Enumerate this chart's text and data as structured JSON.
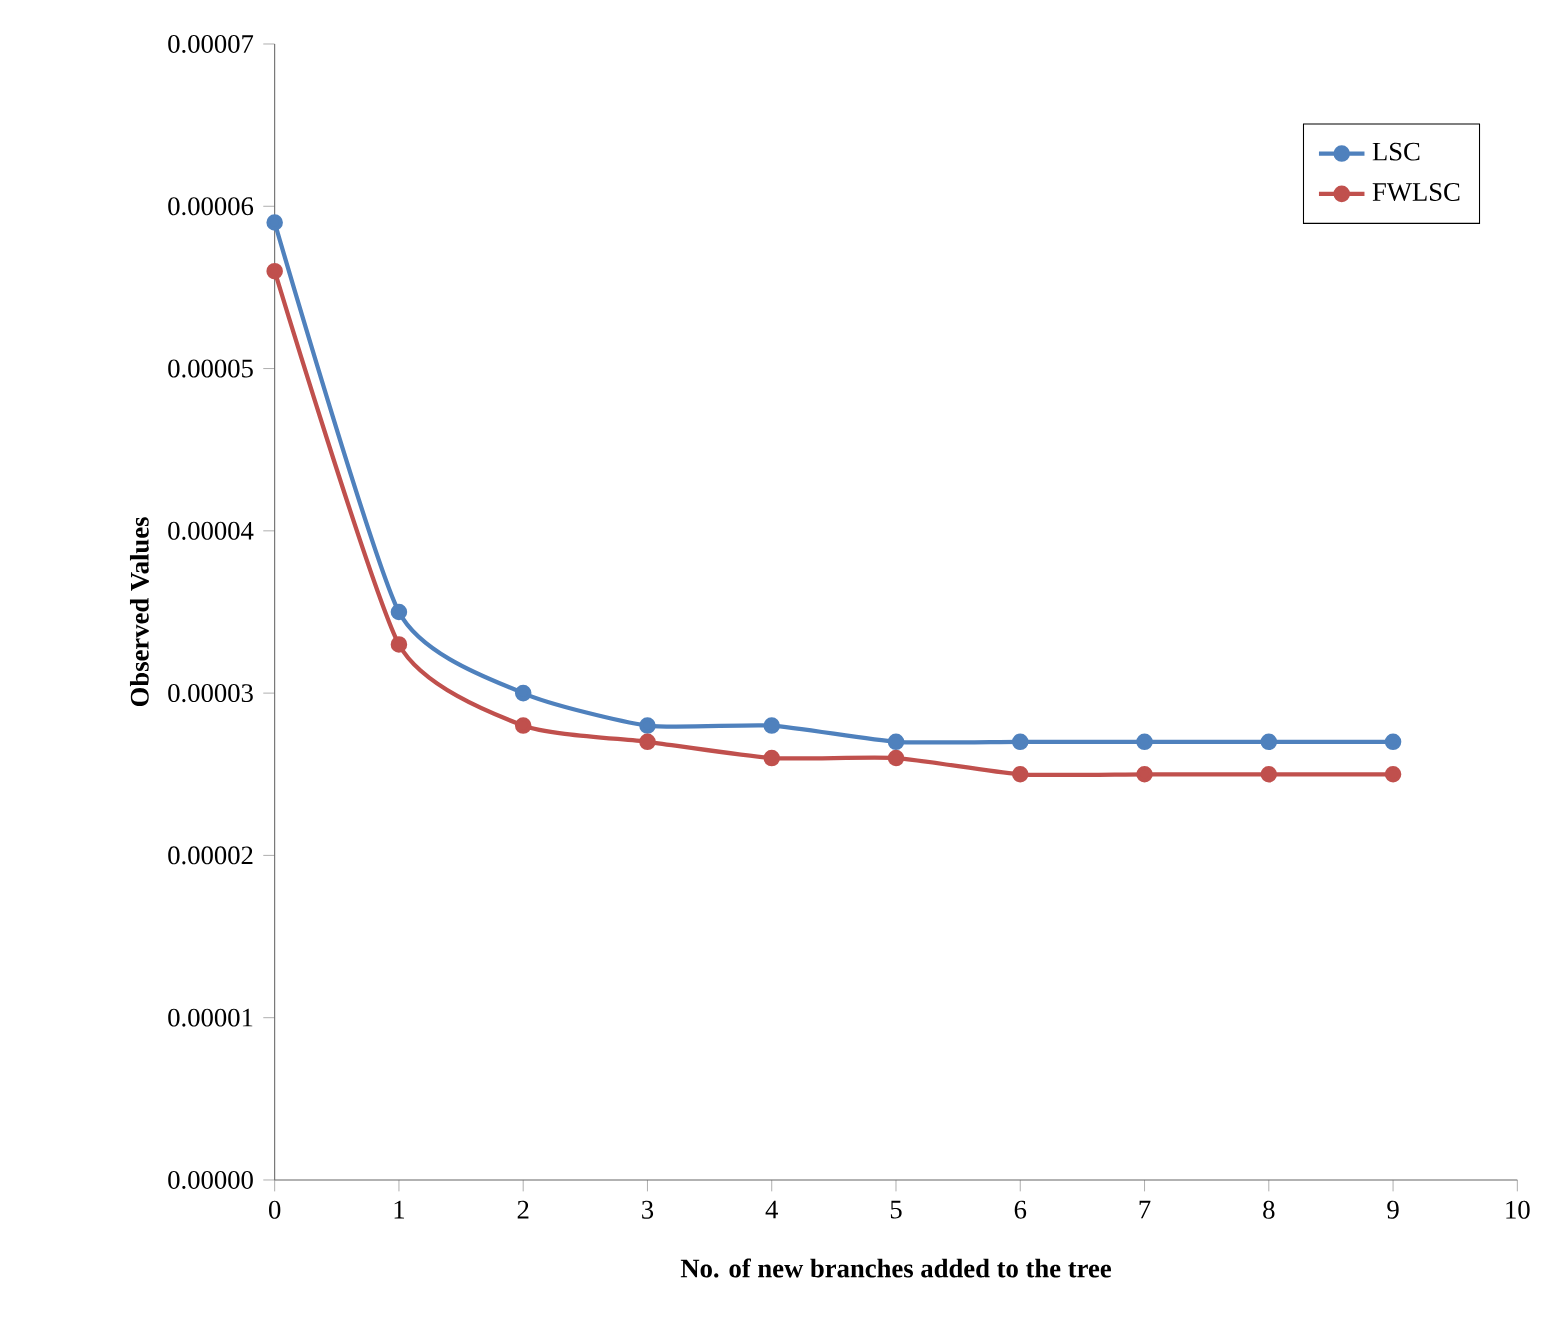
{
  "chart_data": {
    "type": "line",
    "xlabel": "No. of new branches added to the tree",
    "ylabel": "Observed Values",
    "x": [
      0,
      1,
      2,
      3,
      4,
      5,
      6,
      7,
      8,
      9
    ],
    "series": [
      {
        "name": "LSC",
        "color": "#4f81bd",
        "values": [
          5.9e-05,
          3.5e-05,
          3e-05,
          2.8e-05,
          2.8e-05,
          2.7e-05,
          2.7e-05,
          2.7e-05,
          2.7e-05,
          2.7e-05
        ]
      },
      {
        "name": "FWLSC",
        "color": "#c0504d",
        "values": [
          5.6e-05,
          3.3e-05,
          2.8e-05,
          2.7e-05,
          2.6e-05,
          2.6e-05,
          2.5e-05,
          2.5e-05,
          2.5e-05,
          2.5e-05
        ]
      }
    ],
    "xlim": [
      0,
      10
    ],
    "xticks": [
      0,
      1,
      2,
      3,
      4,
      5,
      6,
      7,
      8,
      9,
      10
    ],
    "ylim": [
      0,
      7e-05
    ],
    "yticks": [
      {
        "value": 0,
        "label": "0.00000"
      },
      {
        "value": 1e-05,
        "label": "0.00001"
      },
      {
        "value": 2e-05,
        "label": "0.00002"
      },
      {
        "value": 3e-05,
        "label": "0.00003"
      },
      {
        "value": 4e-05,
        "label": "0.00004"
      },
      {
        "value": 5e-05,
        "label": "0.00005"
      },
      {
        "value": 6e-05,
        "label": "0.00006"
      },
      {
        "value": 7e-05,
        "label": "0.00007"
      }
    ],
    "legend": "top right",
    "marker": "circle",
    "grid": false
  }
}
